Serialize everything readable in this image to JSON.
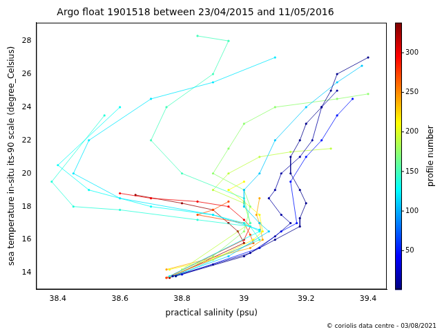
{
  "chart_data": {
    "type": "scatter",
    "title": "Argo float 1901518 between 23/04/2015 and 11/05/2016",
    "x_label": "practical salinity (psu)",
    "y_label": "sea temperature in-situ its-90 scale (degree_Celsius)",
    "annotations": [
      "© coriolis data centre - 03/08/2021"
    ],
    "xlim": [
      38.33,
      39.46
    ],
    "xticks": [
      38.4,
      38.6,
      38.8,
      39.0,
      39.2,
      39.4
    ],
    "ylim": [
      13.0,
      29.1
    ],
    "yticks": [
      14,
      16,
      18,
      20,
      22,
      24,
      26,
      28
    ],
    "grid": false,
    "marker": "circle",
    "line_style": "solid",
    "colorbar": {
      "label": "profile number",
      "range": [
        1,
        338
      ],
      "ticks": [
        50,
        100,
        150,
        200,
        250,
        300
      ]
    },
    "profiles": [
      {
        "profile": 5,
        "x": [
          39.4,
          39.3,
          39.28,
          39.25,
          39.2,
          39.18,
          39.15,
          39.15,
          39.18,
          39.2,
          39.18,
          39.18,
          39.1,
          39.0,
          38.78
        ],
        "y": [
          27,
          26,
          25,
          24,
          23,
          22,
          21,
          20,
          19,
          18.2,
          17.3,
          16.8,
          16,
          15,
          13.8
        ]
      },
      {
        "profile": 12,
        "x": [
          39.3,
          39.25,
          39.22,
          39.18,
          39.12,
          39.1,
          39.08,
          39.12,
          39.15,
          39.1,
          39.02,
          38.9,
          38.77
        ],
        "y": [
          25,
          24,
          22,
          21,
          20,
          19,
          18.5,
          17.5,
          17,
          16.2,
          15.2,
          14.5,
          13.8
        ]
      },
      {
        "profile": 50,
        "x": [
          39.35,
          39.3,
          39.25,
          39.2,
          39.15,
          39.17,
          39.12,
          39.05,
          38.8
        ],
        "y": [
          24.5,
          23.5,
          22,
          21,
          19.5,
          17,
          16.5,
          15.5,
          13.9
        ]
      },
      {
        "profile": 110,
        "x": [
          39.38,
          39.3,
          39.2,
          39.1,
          39.05,
          39.0,
          39.0,
          39.05,
          39.08,
          38.95,
          38.77
        ],
        "y": [
          26.5,
          25.5,
          24,
          22,
          20,
          19,
          18,
          17,
          16.5,
          15,
          13.8
        ]
      },
      {
        "profile": 120,
        "x": [
          39.1,
          38.9,
          38.7,
          38.5,
          38.45,
          38.6,
          38.9,
          39.05
        ],
        "y": [
          27,
          25.5,
          24.5,
          22,
          20,
          18.5,
          17.5,
          16.6
        ]
      },
      {
        "profile": 130,
        "x": [
          38.6,
          38.4,
          38.5,
          38.7,
          38.9,
          39.0,
          39.05,
          38.76
        ],
        "y": [
          24,
          20.5,
          19,
          18,
          17.5,
          17,
          16.5,
          13.8
        ]
      },
      {
        "profile": 140,
        "x": [
          38.55,
          38.38,
          38.45,
          38.6,
          38.85,
          39.02,
          39.05,
          38.78
        ],
        "y": [
          23.5,
          19.5,
          18,
          17.8,
          17.2,
          16.8,
          16,
          13.8
        ]
      },
      {
        "profile": 150,
        "x": [
          38.85,
          38.95,
          38.9,
          38.75,
          38.7,
          38.8,
          39.0,
          39.02
        ],
        "y": [
          28.3,
          28,
          26,
          24,
          22,
          20,
          18.5,
          17
        ]
      },
      {
        "profile": 175,
        "x": [
          39.4,
          39.3,
          39.1,
          39.0,
          38.95,
          38.9,
          39.0,
          39.02,
          39.0,
          38.9,
          38.77
        ],
        "y": [
          24.8,
          24.5,
          24,
          23,
          21.5,
          20,
          19,
          18,
          16.5,
          15,
          13.8
        ]
      },
      {
        "profile": 190,
        "x": [
          39.28,
          39.15,
          39.05,
          38.95,
          38.9,
          39.0,
          39.02,
          38.8
        ],
        "y": [
          21.5,
          21.3,
          21,
          20,
          19,
          18.2,
          17,
          14.2
        ]
      },
      {
        "profile": 210,
        "x": [
          39.0,
          38.95,
          39.0,
          39.05,
          39.06,
          39.03,
          38.9,
          38.76
        ],
        "y": [
          19.5,
          19,
          18.3,
          17.5,
          16.5,
          16,
          14.8,
          14.2
        ]
      },
      {
        "profile": 240,
        "x": [
          39.05,
          39.04,
          39.05,
          39.06,
          39.02,
          38.75
        ],
        "y": [
          18.5,
          17.5,
          17,
          16,
          15.5,
          14.2
        ]
      },
      {
        "profile": 270,
        "x": [
          38.95,
          38.9,
          38.85,
          39.0,
          39.02,
          39.03,
          38.75
        ],
        "y": [
          18.3,
          17.8,
          17.5,
          17,
          16.3,
          15.8,
          13.7
        ]
      },
      {
        "profile": 300,
        "x": [
          38.6,
          38.7,
          38.85,
          38.95,
          39.0,
          39.02,
          39.0,
          38.75
        ],
        "y": [
          18.8,
          18.5,
          18.3,
          18,
          17.2,
          16.8,
          16,
          13.7
        ]
      },
      {
        "profile": 330,
        "x": [
          38.65,
          38.8,
          38.9,
          38.95,
          38.98,
          39.0,
          38.76
        ],
        "y": [
          18.7,
          18.2,
          17.8,
          17,
          16.5,
          15.8,
          13.7
        ]
      }
    ]
  }
}
